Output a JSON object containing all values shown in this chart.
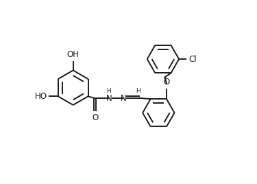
{
  "bg_color": "#ffffff",
  "line_color": "#1a1a1a",
  "line_width": 1.4,
  "font_size": 8.5,
  "xlim": [
    -1.0,
    10.5
  ],
  "ylim": [
    -1.5,
    9.0
  ]
}
